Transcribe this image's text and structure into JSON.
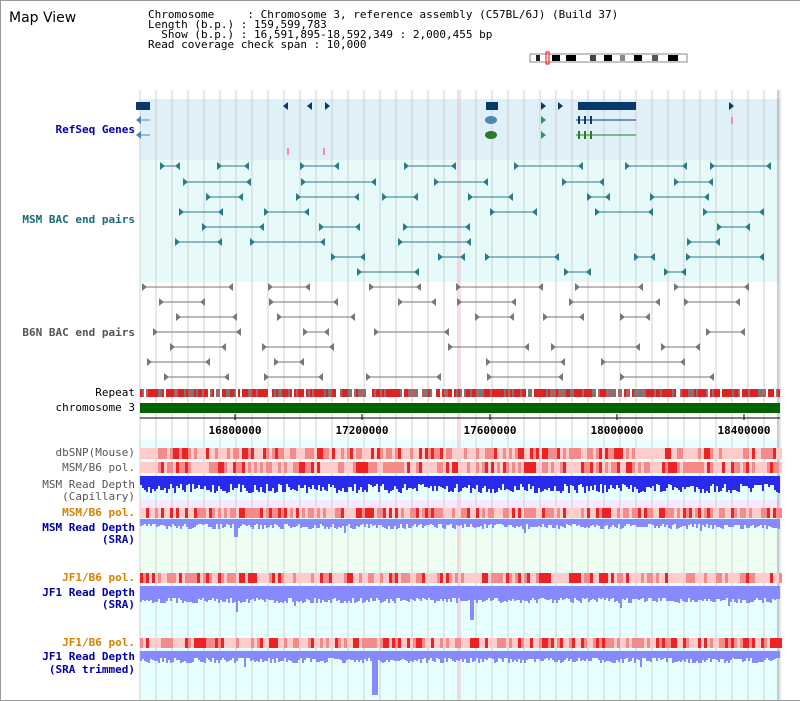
{
  "title": "Map View",
  "info": {
    "chromosome_line": "Chromosome     : Chromosome 3, reference assembly (C57BL/6J) (Build 37)",
    "length_line": "Length (b.p.) : 159,599,783",
    "show_line": "  Show (b.p.) : 16,591,895-18,592,349 : 2,000,455 bp",
    "coverage_line": "Read coverage check span : 10,000"
  },
  "tracks": {
    "refseq": "RefSeq Genes",
    "msm_bac": "MSM BAC end pairs",
    "b6n_bac": "B6N BAC end pairs",
    "repeat": "Repeat",
    "chromosome": "chromosome 3",
    "dbsnp": "dbSNP(Mouse)",
    "msm_b6_pol_1": "MSM/B6 pol.",
    "msm_depth_cap_1": "MSM Read Depth",
    "msm_depth_cap_2": "(Capillary)",
    "msm_b6_pol_2": "MSM/B6 pol.",
    "msm_depth_sra_1": "MSM Read Depth",
    "msm_depth_sra_2": "(SRA)",
    "jf1_pol_1": "JF1/B6 pol.",
    "jf1_depth_1": "JF1 Read Depth",
    "jf1_depth_2": "(SRA)",
    "jf1_pol_2": "JF1/B6 pol.",
    "jf1_trim_1": "JF1 Read Depth",
    "jf1_trim_2": "(SRA trimmed)"
  },
  "axis_ticks": [
    "16800000",
    "17200000",
    "17600000",
    "18000000",
    "18400000"
  ],
  "colors": {
    "refseq_bg": "#dff0f8",
    "msm_bac_bg": "#e6fafa",
    "track_bg": "#e6ffff",
    "msm_sra_bg": "#eefff2",
    "chromosome": "#006400",
    "gene_dark": "#0a3a6a",
    "msm_feature": "#2a7a8a",
    "b6n_feature": "#777777",
    "depth": "#2a2aee",
    "depth_light": "#8888ff",
    "pol_light": "#ffcccc",
    "pol_dark": "#ee2222",
    "title_blue": "#0000aa",
    "teal_label": "#1a6a7a",
    "orange_label": "#d98000"
  }
}
